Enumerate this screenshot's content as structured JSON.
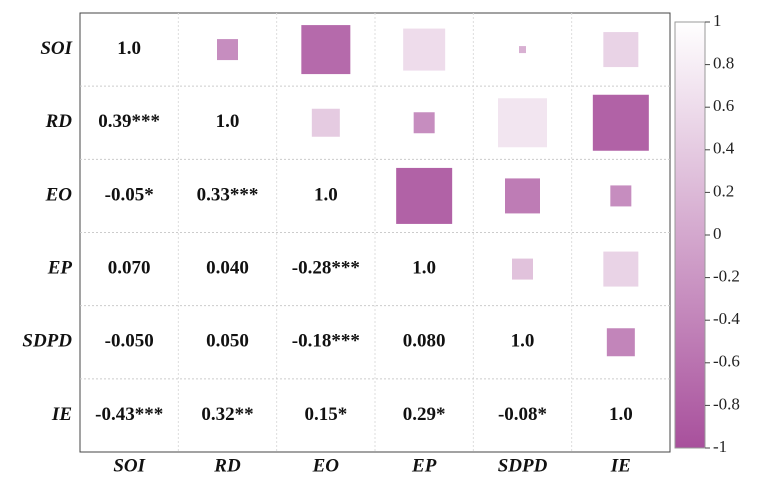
{
  "chart_data": {
    "type": "correlation-matrix",
    "variables": [
      "SOI",
      "RD",
      "EO",
      "EP",
      "SDPD",
      "IE"
    ],
    "values": [
      [
        1,
        -0.3,
        -0.7,
        0.6,
        0.1,
        0.5
      ],
      [
        0.39,
        1,
        0.4,
        -0.3,
        0.7,
        -0.8
      ],
      [
        -0.05,
        0.33,
        1,
        -0.8,
        -0.5,
        -0.3
      ],
      [
        0.07,
        0.04,
        -0.28,
        1,
        0.3,
        0.5
      ],
      [
        -0.05,
        0.05,
        -0.18,
        0.08,
        1,
        -0.4
      ],
      [
        -0.43,
        0.32,
        0.15,
        0.29,
        -0.08,
        1
      ]
    ],
    "value_labels": [
      [
        "1.0",
        null,
        null,
        null,
        null,
        null
      ],
      [
        "0.39***",
        "1.0",
        null,
        null,
        null,
        null
      ],
      [
        "-0.05*",
        "0.33***",
        "1.0",
        null,
        null,
        null
      ],
      [
        "0.070",
        "0.040",
        "-0.28***",
        "1.0",
        null,
        null
      ],
      [
        "-0.050",
        "0.050",
        "-0.18***",
        "0.080",
        "1.0",
        null
      ],
      [
        "-0.43***",
        "0.32**",
        "0.15*",
        "0.29*",
        "-0.08*",
        "1.0"
      ]
    ],
    "colors": [
      "#a8509c",
      "#ffffff"
    ],
    "clim": [
      -1,
      1
    ],
    "cticks": [
      1,
      0.8,
      0.6,
      0.4,
      0.2,
      0,
      -0.2,
      -0.4,
      -0.6,
      -0.8,
      -1
    ]
  }
}
